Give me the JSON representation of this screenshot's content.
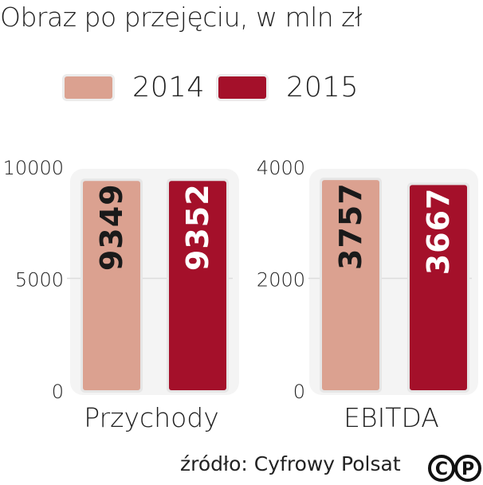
{
  "title": "Obraz po przejęciu, w mln zł",
  "legend": [
    {
      "label": "2014",
      "color": "#dba190"
    },
    {
      "label": "2015",
      "color": "#a4102a"
    }
  ],
  "source": "źródło: Cyfrowy Polsat",
  "logo": {
    "name": "cp-logo",
    "letters": [
      "C",
      "P"
    ]
  },
  "chart_data": [
    {
      "type": "bar",
      "categories": [
        "2014",
        "2015"
      ],
      "values": [
        9349,
        9352
      ],
      "value_labels": [
        "9349",
        "9352"
      ],
      "xlabel": "Przychody",
      "ylim": [
        0,
        10000
      ],
      "yticks": [
        "10000",
        "5000",
        "0"
      ],
      "ytick_values": [
        10000,
        5000,
        0
      ],
      "colors": [
        "#dba190",
        "#a4102a"
      ]
    },
    {
      "type": "bar",
      "categories": [
        "2014",
        "2015"
      ],
      "values": [
        3757,
        3667
      ],
      "value_labels": [
        "3757",
        "3667"
      ],
      "xlabel": "EBITDA",
      "ylim": [
        0,
        4000
      ],
      "yticks": [
        "4000",
        "2000",
        "0"
      ],
      "ytick_values": [
        4000,
        2000,
        0
      ],
      "colors": [
        "#dba190",
        "#a4102a"
      ]
    }
  ]
}
